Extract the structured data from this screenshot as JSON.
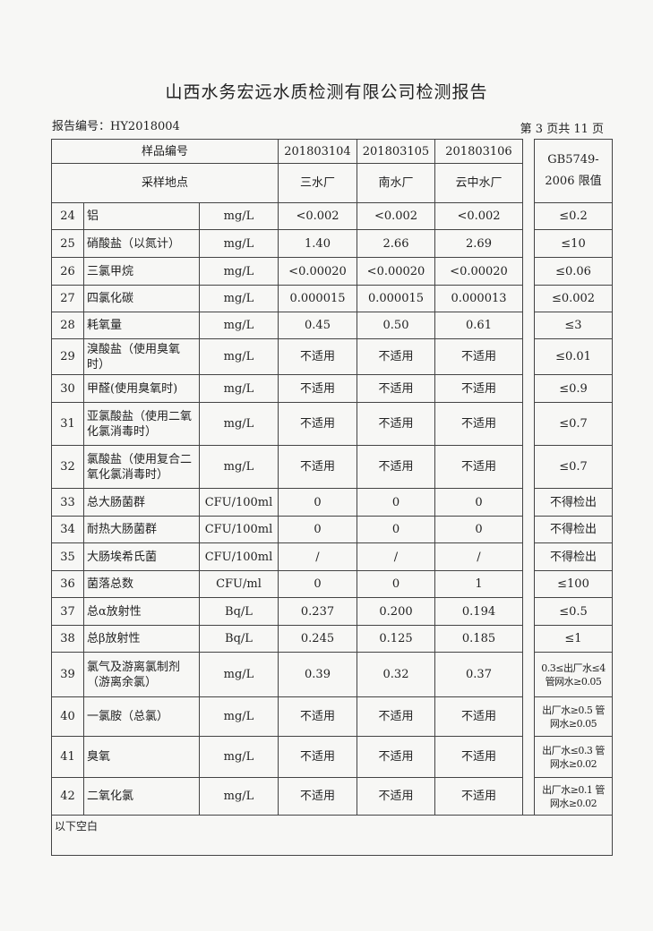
{
  "title": "山西水务宏远水质检测有限公司检测报告",
  "report_no": "报告编号：HY2018004",
  "page_info": "第 3 页共 11 页",
  "header": {
    "sample_no_label": "样品编号",
    "samples": [
      "201803104",
      "201803105",
      "201803106"
    ],
    "site_label": "采样地点",
    "sites": [
      "三水厂",
      "南水厂",
      "云中水厂"
    ],
    "limit_label": "GB5749-2006 限值"
  },
  "rows": [
    {
      "no": "24",
      "name": "铝",
      "unit": "mg/L",
      "v": [
        "<0.002",
        "<0.002",
        "<0.002"
      ],
      "limit": "≤0.2"
    },
    {
      "no": "25",
      "name": "硝酸盐（以氮计）",
      "unit": "mg/L",
      "v": [
        "1.40",
        "2.66",
        "2.69"
      ],
      "limit": "≤10"
    },
    {
      "no": "26",
      "name": "三氯甲烷",
      "unit": "mg/L",
      "v": [
        "<0.00020",
        "<0.00020",
        "<0.00020"
      ],
      "limit": "≤0.06"
    },
    {
      "no": "27",
      "name": "四氯化碳",
      "unit": "mg/L",
      "v": [
        "0.000015",
        "0.000015",
        "0.000013"
      ],
      "limit": "≤0.002"
    },
    {
      "no": "28",
      "name": "耗氧量",
      "unit": "mg/L",
      "v": [
        "0.45",
        "0.50",
        "0.61"
      ],
      "limit": "≤3"
    },
    {
      "no": "29",
      "name": "溴酸盐（使用臭氧时）",
      "unit": "mg/L",
      "v": [
        "不适用",
        "不适用",
        "不适用"
      ],
      "limit": "≤0.01"
    },
    {
      "no": "30",
      "name": "甲醛(使用臭氧时)",
      "unit": "mg/L",
      "v": [
        "不适用",
        "不适用",
        "不适用"
      ],
      "limit": "≤0.9"
    },
    {
      "no": "31",
      "name": "亚氯酸盐（使用二氧化氯消毒时）",
      "unit": "mg/L",
      "v": [
        "不适用",
        "不适用",
        "不适用"
      ],
      "limit": "≤0.7"
    },
    {
      "no": "32",
      "name": "氯酸盐（使用复合二氧化氯消毒时）",
      "unit": "mg/L",
      "v": [
        "不适用",
        "不适用",
        "不适用"
      ],
      "limit": "≤0.7"
    },
    {
      "no": "33",
      "name": "总大肠菌群",
      "unit": "CFU/100ml",
      "v": [
        "0",
        "0",
        "0"
      ],
      "limit": "不得检出"
    },
    {
      "no": "34",
      "name": "耐热大肠菌群",
      "unit": "CFU/100ml",
      "v": [
        "0",
        "0",
        "0"
      ],
      "limit": "不得检出"
    },
    {
      "no": "35",
      "name": "大肠埃希氏菌",
      "unit": "CFU/100ml",
      "v": [
        "/",
        "/",
        "/"
      ],
      "limit": "不得检出"
    },
    {
      "no": "36",
      "name": "菌落总数",
      "unit": "CFU/ml",
      "v": [
        "0",
        "0",
        "1"
      ],
      "limit": "≤100"
    },
    {
      "no": "37",
      "name": "总α放射性",
      "unit": "Bq/L",
      "v": [
        "0.237",
        "0.200",
        "0.194"
      ],
      "limit": "≤0.5"
    },
    {
      "no": "38",
      "name": "总β放射性",
      "unit": "Bq/L",
      "v": [
        "0.245",
        "0.125",
        "0.185"
      ],
      "limit": "≤1"
    },
    {
      "no": "39",
      "name": "氯气及游离氯制剂（游离余氯）",
      "unit": "mg/L",
      "v": [
        "0.39",
        "0.32",
        "0.37"
      ],
      "limit": "0.3≤出厂水≤4 管网水≥0.05"
    },
    {
      "no": "40",
      "name": "一氯胺（总氯）",
      "unit": "mg/L",
      "v": [
        "不适用",
        "不适用",
        "不适用"
      ],
      "limit": "出厂水≥0.5 管网水≥0.05"
    },
    {
      "no": "41",
      "name": "臭氧",
      "unit": "mg/L",
      "v": [
        "不适用",
        "不适用",
        "不适用"
      ],
      "limit": "出厂水≤0.3 管网水≥0.02"
    },
    {
      "no": "42",
      "name": "二氧化氯",
      "unit": "mg/L",
      "v": [
        "不适用",
        "不适用",
        "不适用"
      ],
      "limit": "出厂水≥0.1 管网水≥0.02"
    }
  ],
  "footer_note": "以下空白"
}
